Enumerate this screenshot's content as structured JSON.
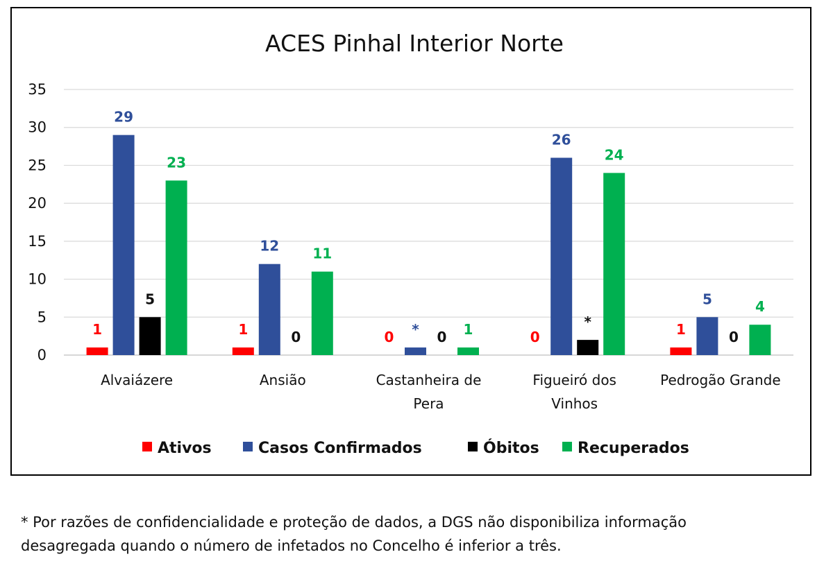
{
  "chart_data": {
    "type": "bar",
    "title": "ACES Pinhal Interior Norte",
    "categories": [
      [
        "Alvaiázere"
      ],
      [
        "Ansião"
      ],
      [
        "Castanheira de",
        "Pera"
      ],
      [
        "Figueiró dos",
        "Vinhos"
      ],
      [
        "Pedrogão Grande"
      ]
    ],
    "series": [
      {
        "name": "Ativos",
        "color": "#ff0000",
        "values": [
          1,
          1,
          0,
          0,
          1
        ],
        "labels": [
          "1",
          "1",
          "0",
          "0",
          "1"
        ]
      },
      {
        "name": "Casos Confirmados",
        "color": "#2f4f9a",
        "values": [
          29,
          12,
          1,
          26,
          5
        ],
        "labels": [
          "29",
          "12",
          "*",
          "26",
          "5"
        ]
      },
      {
        "name": "Óbitos",
        "color": "#000000",
        "values": [
          5,
          0,
          0,
          2,
          0
        ],
        "labels": [
          "5",
          "0",
          "0",
          "*",
          "0"
        ]
      },
      {
        "name": "Recuperados",
        "color": "#00b050",
        "values": [
          23,
          11,
          1,
          24,
          4
        ],
        "labels": [
          "23",
          "11",
          "1",
          "24",
          "4"
        ]
      }
    ],
    "ylim": [
      0,
      35
    ],
    "yticks": [
      0,
      5,
      10,
      15,
      20,
      25,
      30,
      35
    ],
    "grid": true,
    "legend": "bottom"
  },
  "footnote": {
    "line1": "* Por razões de confidencialidade e proteção de dados, a DGS não disponibiliza informação",
    "line2": "desagregada quando o número de infetados no Concelho é inferior a três."
  }
}
